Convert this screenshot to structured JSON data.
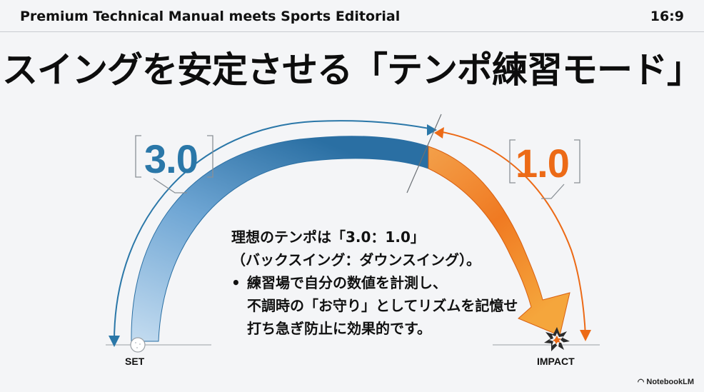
{
  "header": {
    "left": "Premium Technical Manual meets Sports Editorial",
    "right": "16:9"
  },
  "title": "スイングを安定させる「テンポ練習モード」",
  "diagram": {
    "backswing_ratio": "3.0",
    "downswing_ratio": "1.0",
    "start_label": "SET",
    "end_label": "IMPACT",
    "colors": {
      "backswing": "#2a77a8",
      "backswing_light": "#b9d6ee",
      "downswing": "#ec6a16",
      "downswing_light": "#f6a24a"
    },
    "icons": [
      "golf-ball-icon",
      "impact-burst-icon"
    ]
  },
  "description": {
    "line1": "理想のテンポは「3.0：1.0」",
    "line2": "（バックスイング：ダウンスイング）。",
    "bullet_line1": "練習場で自分の数値を計測し、",
    "bullet_line2": "不調時の「お守り」としてリズムを記憶せ",
    "bullet_line3": "打ち急ぎ防止に効果的です。"
  },
  "brand": "NotebookLM"
}
